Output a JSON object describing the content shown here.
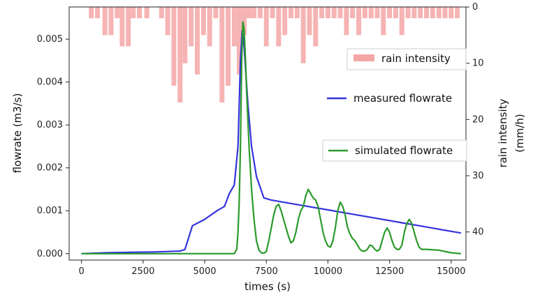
{
  "chart_data": {
    "type": "line",
    "xlabel": "times (s)",
    "ylabel_left": "flowrate (m3/s)",
    "ylabel_right_line1": "rain intensity",
    "ylabel_right_line2": "(mm/h)",
    "xlim": [
      -500,
      15600
    ],
    "ylim_left": [
      -0.00015,
      0.00575
    ],
    "ylim_right_inverted": [
      0,
      45
    ],
    "x_ticks": [
      "0",
      "2500",
      "5000",
      "7500",
      "10000",
      "12500",
      "15000"
    ],
    "y_left_ticks": [
      "0.000",
      "0.001",
      "0.002",
      "0.003",
      "0.004",
      "0.005"
    ],
    "y_right_ticks": [
      "0",
      "10",
      "20",
      "30",
      "40"
    ],
    "grid": false,
    "legend": [
      {
        "label": "rain intensity",
        "color": "#f4a6a6"
      },
      {
        "label": "measured flowrate",
        "color": "#3333dd"
      },
      {
        "label": "simulated flowrate",
        "color": "#2a9a2a"
      }
    ],
    "series": [
      {
        "name": "rain intensity",
        "kind": "bar",
        "color": "#f4a6a6",
        "x": [
          400,
          650,
          950,
          1200,
          1450,
          1650,
          1900,
          2100,
          2350,
          2650,
          2950,
          3250,
          3500,
          3750,
          4000,
          4200,
          4450,
          4700,
          4950,
          5200,
          5450,
          5700,
          5950,
          6200,
          6400,
          6600,
          6800,
          7000,
          7250,
          7500,
          7750,
          8000,
          8250,
          8500,
          8750,
          9000,
          9250,
          9500,
          9750,
          10000,
          10250,
          10500,
          10750,
          11000,
          11250,
          11500,
          11750,
          12000,
          12250,
          12500,
          12750,
          13000,
          13250,
          13500,
          13750,
          14000,
          14250,
          14500,
          14750,
          15000,
          15250
        ],
        "values": [
          2,
          2,
          5,
          5,
          2,
          7,
          7,
          2,
          2,
          2,
          0,
          2,
          5,
          14,
          17,
          10,
          7,
          12,
          5,
          7,
          2,
          17,
          14,
          7,
          12,
          5,
          2,
          2,
          2,
          7,
          2,
          7,
          5,
          2,
          2,
          10,
          5,
          7,
          2,
          2,
          2,
          2,
          5,
          2,
          5,
          2,
          2,
          2,
          5,
          2,
          2,
          5,
          2,
          2,
          2,
          2,
          2,
          2,
          2,
          2,
          2
        ]
      },
      {
        "name": "measured flowrate",
        "kind": "line",
        "color": "#3333dd",
        "x": [
          0,
          1000,
          2000,
          3000,
          4000,
          4200,
          4500,
          5000,
          5500,
          5800,
          6000,
          6200,
          6350,
          6450,
          6520,
          6600,
          6750,
          6900,
          7100,
          7400,
          7700,
          9000,
          10000,
          11000,
          12000,
          13000,
          14000,
          15000,
          15400
        ],
        "values": [
          0.0,
          2e-05,
          3e-05,
          4e-05,
          6e-05,
          0.0001,
          0.00065,
          0.0008,
          0.001,
          0.0011,
          0.0014,
          0.0016,
          0.0025,
          0.0045,
          0.0052,
          0.0048,
          0.0035,
          0.0025,
          0.0018,
          0.0013,
          0.00125,
          0.00112,
          0.00102,
          0.00092,
          0.00082,
          0.00072,
          0.00062,
          0.00052,
          0.00048
        ]
      },
      {
        "name": "simulated flowrate",
        "kind": "line",
        "color": "#2a9a2a",
        "x": [
          0,
          6200,
          6300,
          6350,
          6400,
          6450,
          6500,
          6550,
          6600,
          6650,
          6700,
          6800,
          6900,
          7000,
          7100,
          7200,
          7300,
          7400,
          7500,
          7600,
          7700,
          7800,
          7900,
          8000,
          8100,
          8200,
          8300,
          8400,
          8500,
          8600,
          8700,
          8800,
          8900,
          9000,
          9100,
          9200,
          9300,
          9400,
          9500,
          9600,
          9700,
          9800,
          9900,
          10000,
          10100,
          10200,
          10300,
          10400,
          10500,
          10600,
          10700,
          10800,
          10900,
          11000,
          11100,
          11200,
          11300,
          11400,
          11500,
          11600,
          11700,
          11800,
          11900,
          12000,
          12100,
          12200,
          12300,
          12400,
          12500,
          12600,
          12700,
          12800,
          12900,
          13000,
          13100,
          13200,
          13300,
          13400,
          13500,
          13600,
          13700,
          13800,
          13900,
          14000,
          14500,
          15000,
          15400
        ],
        "values": [
          0.0,
          0.0,
          0.0001,
          0.0005,
          0.0012,
          0.0025,
          0.0045,
          0.0054,
          0.0052,
          0.0046,
          0.0038,
          0.0025,
          0.0015,
          0.0008,
          0.0003,
          8e-05,
          2e-05,
          1e-05,
          5e-05,
          0.0003,
          0.0006,
          0.0009,
          0.0011,
          0.00115,
          0.001,
          0.0008,
          0.0006,
          0.0004,
          0.00025,
          0.0003,
          0.0005,
          0.0008,
          0.001,
          0.0011,
          0.00135,
          0.0015,
          0.0014,
          0.0013,
          0.00125,
          0.0011,
          0.0008,
          0.0005,
          0.0003,
          0.00018,
          0.00015,
          0.0003,
          0.0006,
          0.001,
          0.0012,
          0.0011,
          0.0009,
          0.0006,
          0.00045,
          0.00035,
          0.0003,
          0.0002,
          0.0001,
          6e-05,
          6e-05,
          0.0001,
          0.0002,
          0.00018,
          0.0001,
          6e-05,
          0.0001,
          0.0003,
          0.0005,
          0.0006,
          0.0005,
          0.0003,
          0.00015,
          0.0001,
          0.0001,
          0.0002,
          0.0005,
          0.0007,
          0.0008,
          0.0007,
          0.0005,
          0.0003,
          0.00015,
          0.0001,
          0.0001,
          0.0001,
          8e-05,
          2e-05,
          0.0
        ]
      }
    ]
  }
}
